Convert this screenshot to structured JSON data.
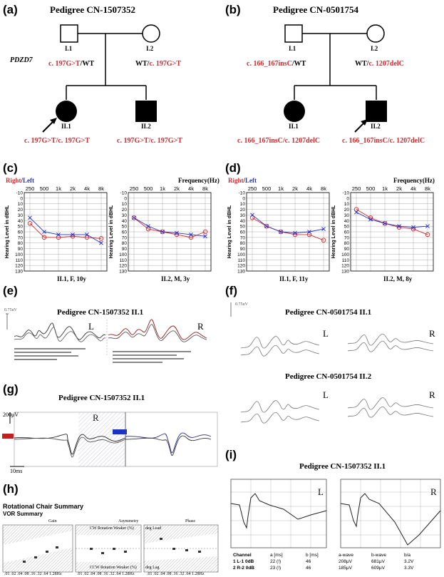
{
  "panels": {
    "a": {
      "label": "(a)",
      "title": "Pedigree CN-1507352",
      "gene": "PDZD7",
      "individuals": [
        {
          "id": "I.1",
          "genotype_red": "c. 197G>T",
          "genotype_black": "/WT"
        },
        {
          "id": "I.2",
          "genotype_black": "WT/",
          "genotype_red": "c. 197G>T"
        },
        {
          "id": "II.1",
          "genotype": "c. 197G>T/c. 197G>T"
        },
        {
          "id": "II.2",
          "genotype": "c. 197G>T/c. 197G>T"
        }
      ]
    },
    "b": {
      "label": "(b)",
      "title": "Pedigree CN-0501754",
      "individuals": [
        {
          "id": "I.1",
          "genotype_red": "c. 166_167insC",
          "genotype_black": "/WT"
        },
        {
          "id": "I.2",
          "genotype_black": "WT/",
          "genotype_red": "c. 1207delC"
        },
        {
          "id": "II.1",
          "genotype": "c. 166_167insC/c. 1207delC"
        },
        {
          "id": "II.2",
          "genotype": "c. 166_167insC/c. 1207delC"
        }
      ]
    },
    "c": {
      "label": "(c)",
      "right": "Right",
      "slash": "/",
      "left": "Left",
      "freq": "Frequency(Hz)",
      "ylabel": "Hearing Level in dBHL",
      "sub1": "II.1, F, 10y",
      "sub2": "II.2, M, 3y"
    },
    "d": {
      "label": "(d)",
      "right": "Right",
      "slash": "/",
      "left": "Left",
      "freq": "Frequency(Hz)",
      "ylabel": "Hearing Level in dBHL",
      "sub1": "II.1, F, 11y",
      "sub2": "II.2, M, 8y"
    },
    "e": {
      "label": "(e)",
      "title": "Pedigree CN-1507352    II.1",
      "L": "L",
      "R": "R",
      "scale": "0.75uV"
    },
    "f": {
      "label": "(f)",
      "title1": "Pedigree CN-0501754    II.1",
      "title2": "Pedigree CN-0501754    II.2",
      "L": "L",
      "R": "R",
      "scale": "0.75uV"
    },
    "g": {
      "label": "(g)",
      "title": "Pedigree CN-1507352    II.1",
      "R": "R",
      "scale_v": "200μV",
      "scale_t": "10ms"
    },
    "h": {
      "label": "(h)",
      "title": "Rotational Chair Summary",
      "subtitle": "VOR Summary",
      "gain": "Gain",
      "asymmetry": "Asymmetry",
      "phase": "Phase",
      "cw": "CW Rotation Weaker (%)",
      "ccw": "CCW Rotation Weaker (%)",
      "lead": "deg Lead",
      "lag": "deg Lag",
      "freqs": ".01 .02 .04 .08 .16 .32 .64 1.28Hz"
    },
    "i": {
      "label": "(i)",
      "title": "Pedigree CN-1507352    II.1",
      "L": "L",
      "R": "R",
      "table": {
        "headers": [
          "Channel",
          "a [ms]",
          "b [ms]",
          "a-wave",
          "b-wave",
          "b/a"
        ],
        "rows": [
          [
            "1 L-1 0dB",
            "22 (!)",
            "46",
            "208μV",
            "681μV",
            "3.2V"
          ],
          [
            "2 R-2 0dB",
            "23 (!)",
            "46",
            "185μV",
            "609μV",
            "3.3V"
          ]
        ]
      }
    }
  },
  "chart_data": [
    {
      "type": "line",
      "panel": "c-left",
      "title": "",
      "xlabel": "",
      "ylabel": "Hearing Level in dBHL",
      "categories": [
        "250",
        "500",
        "1k",
        "2k",
        "4k",
        "8k"
      ],
      "ylim": [
        -10,
        130
      ],
      "yreversed": true,
      "series": [
        {
          "name": "Right",
          "values": [
            45,
            70,
            70,
            68,
            70,
            72
          ]
        },
        {
          "name": "Left",
          "values": [
            35,
            60,
            65,
            65,
            65,
            80
          ]
        }
      ]
    },
    {
      "type": "line",
      "panel": "c-right",
      "title": "",
      "xlabel": "",
      "ylabel": "Hearing Level in dBHL",
      "categories": [
        "250",
        "500",
        "1k",
        "2k",
        "4k",
        "8k"
      ],
      "ylim": [
        -10,
        130
      ],
      "yreversed": true,
      "series": [
        {
          "name": "Right",
          "values": [
            35,
            55,
            60,
            65,
            70,
            60
          ]
        },
        {
          "name": "Left",
          "values": [
            35,
            50,
            60,
            62,
            65,
            68
          ]
        }
      ]
    },
    {
      "type": "line",
      "panel": "d-left",
      "title": "",
      "xlabel": "",
      "ylabel": "Hearing Level in dBHL",
      "categories": [
        "250",
        "500",
        "1k",
        "2k",
        "4k",
        "8k"
      ],
      "ylim": [
        -10,
        130
      ],
      "yreversed": true,
      "series": [
        {
          "name": "Right",
          "values": [
            35,
            50,
            60,
            65,
            65,
            75
          ]
        },
        {
          "name": "Left",
          "values": [
            30,
            50,
            60,
            62,
            60,
            55
          ]
        }
      ]
    },
    {
      "type": "line",
      "panel": "d-right",
      "title": "",
      "xlabel": "",
      "ylabel": "Hearing Level in dBHL",
      "categories": [
        "250",
        "500",
        "1k",
        "2k",
        "4k",
        "8k"
      ],
      "ylim": [
        -10,
        130
      ],
      "yreversed": true,
      "series": [
        {
          "name": "Right",
          "values": [
            20,
            35,
            45,
            52,
            55,
            65
          ]
        },
        {
          "name": "Left",
          "values": [
            25,
            38,
            45,
            50,
            52,
            50
          ]
        }
      ]
    }
  ]
}
